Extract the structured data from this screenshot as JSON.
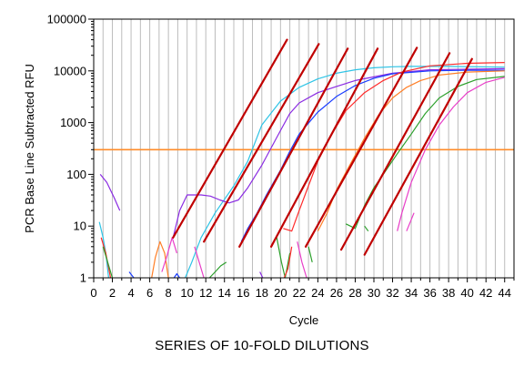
{
  "chart_data": {
    "type": "line",
    "ylabel": "PCR Base Line Subtracted RFU",
    "xlabel": "Cycle",
    "caption": "SERIES OF 10-FOLD DILUTIONS",
    "y_scale": "log",
    "xlim": [
      0,
      45
    ],
    "ylim": [
      1,
      100000
    ],
    "x_ticks": [
      "0",
      "2",
      "4",
      "6",
      "8",
      "10",
      "12",
      "14",
      "16",
      "18",
      "20",
      "22",
      "24",
      "26",
      "28",
      "30",
      "32",
      "34",
      "36",
      "38",
      "40",
      "42",
      "44"
    ],
    "y_ticks": [
      "1",
      "10",
      "100",
      "1000",
      "10000",
      "100000"
    ],
    "grid": "vertical",
    "threshold": {
      "value": 300,
      "color": "#ff8c2a"
    },
    "colors": {
      "regression": "#c00000"
    },
    "regression_lines": [
      {
        "x": [
          8.5,
          20.7
        ],
        "y": [
          6,
          40000
        ]
      },
      {
        "x": [
          11.8,
          24.1
        ],
        "y": [
          5,
          33000
        ]
      },
      {
        "x": [
          15.6,
          27.2
        ],
        "y": [
          4,
          27000
        ]
      },
      {
        "x": [
          19.0,
          30.4
        ],
        "y": [
          4,
          27000
        ]
      },
      {
        "x": [
          22.7,
          34.6
        ],
        "y": [
          4,
          28000
        ]
      },
      {
        "x": [
          26.5,
          38.1
        ],
        "y": [
          3.5,
          22000
        ]
      },
      {
        "x": [
          29.0,
          40.5
        ],
        "y": [
          2.8,
          17000
        ]
      }
    ],
    "series": [
      {
        "color": "#2ec4e6",
        "x": [
          9.8,
          10.5,
          11.5,
          13,
          15,
          16.5,
          18,
          20,
          22,
          24,
          26,
          28,
          30,
          32,
          34,
          38,
          44
        ],
        "y": [
          1,
          2,
          6,
          18,
          60,
          180,
          900,
          2600,
          4800,
          7000,
          9000,
          10500,
          11500,
          12000,
          12200,
          12200,
          11800
        ]
      },
      {
        "color": "#8a2be2",
        "x": [
          8.5,
          9.2,
          10,
          11.5,
          12.5,
          13.5,
          14.5,
          15.5,
          16.5,
          18,
          20,
          21,
          22,
          24,
          26,
          28,
          32,
          36,
          44
        ],
        "y": [
          6,
          20,
          40,
          40,
          38,
          32,
          28,
          32,
          55,
          150,
          700,
          1500,
          2400,
          3800,
          5000,
          6500,
          9000,
          10500,
          11000
        ]
      },
      {
        "color": "#1a3dff",
        "x": [
          15.8,
          16.5,
          17.5,
          18.5,
          20,
          21,
          22,
          24,
          26,
          28,
          30,
          32,
          36,
          40,
          44
        ],
        "y": [
          5,
          9,
          18,
          40,
          120,
          280,
          600,
          1600,
          3200,
          5200,
          7200,
          8800,
          10000,
          10300,
          10300
        ]
      },
      {
        "color": "#ff2a2a",
        "x": [
          20.3,
          21.2,
          22,
          23,
          24,
          25.5,
          27,
          29,
          31,
          33,
          36,
          40,
          44
        ],
        "y": [
          9,
          8,
          20,
          60,
          180,
          600,
          1700,
          3800,
          6500,
          9500,
          12500,
          14000,
          14500
        ]
      },
      {
        "color": "#ff7f27",
        "x": [
          24,
          25,
          26,
          27.5,
          29,
          30.5,
          32,
          33.5,
          35,
          37,
          40,
          44
        ],
        "y": [
          8,
          18,
          50,
          160,
          500,
          1400,
          3000,
          4800,
          6500,
          8300,
          9500,
          10000
        ]
      },
      {
        "color": "#2ca02c",
        "x": [
          27,
          28,
          29,
          30,
          31,
          32.5,
          34,
          35.5,
          37,
          39,
          41,
          44
        ],
        "y": [
          11,
          9,
          25,
          55,
          100,
          250,
          600,
          1500,
          3000,
          5000,
          6800,
          7800
        ]
      },
      {
        "color": "#e83ec8",
        "x": [
          32.5,
          33,
          34,
          35.5,
          37,
          38.5,
          40,
          42,
          44
        ],
        "y": [
          8,
          18,
          70,
          300,
          900,
          2000,
          3800,
          6000,
          7500
        ]
      },
      {
        "color": "#8a2be2",
        "x": [
          0.7,
          1.4,
          2.2,
          2.8
        ],
        "y": [
          100,
          70,
          35,
          20
        ]
      },
      {
        "color": "#2ec4e6",
        "x": [
          0.6,
          1.0,
          1.3,
          1.6
        ],
        "y": [
          12,
          6,
          3,
          1
        ]
      },
      {
        "color": "#ff2a2a",
        "x": [
          0.8,
          1.3,
          1.8
        ],
        "y": [
          6,
          3,
          1
        ]
      },
      {
        "color": "#2ca02c",
        "x": [
          1.0,
          1.5,
          2.0
        ],
        "y": [
          4,
          2,
          1
        ]
      },
      {
        "color": "#1a3dff",
        "x": [
          3.8,
          4.3
        ],
        "y": [
          1.3,
          1
        ]
      },
      {
        "color": "#ff7f27",
        "x": [
          6.2,
          6.6,
          7.1,
          7.6,
          8.0
        ],
        "y": [
          1,
          2.5,
          5,
          3,
          1
        ]
      },
      {
        "color": "#e83ec8",
        "x": [
          7.3,
          7.8,
          8.4,
          8.9
        ],
        "y": [
          1.3,
          2.5,
          6,
          3
        ]
      },
      {
        "color": "#1a3dff",
        "x": [
          8.6,
          8.9,
          9.2
        ],
        "y": [
          1,
          1.2,
          1
        ]
      },
      {
        "color": "#e83ec8",
        "x": [
          10.8,
          11.3,
          11.8
        ],
        "y": [
          4,
          2,
          1
        ]
      },
      {
        "color": "#2ca02c",
        "x": [
          12.4,
          13,
          13.6,
          14.2
        ],
        "y": [
          1,
          1.3,
          1.7,
          2
        ]
      },
      {
        "color": "#8a2be2",
        "x": [
          17.8,
          18.1
        ],
        "y": [
          1.3,
          1
        ]
      },
      {
        "color": "#2ca02c",
        "x": [
          19.6,
          20.1,
          20.5,
          21.0
        ],
        "y": [
          6,
          2,
          1,
          3
        ]
      },
      {
        "color": "#ff2a2a",
        "x": [
          20.4,
          20.8,
          21.2
        ],
        "y": [
          1,
          1.5,
          4
        ]
      },
      {
        "color": "#e83ec8",
        "x": [
          21.8,
          22.3,
          22.8
        ],
        "y": [
          5,
          2,
          1
        ]
      },
      {
        "color": "#2ca02c",
        "x": [
          23.0,
          23.4
        ],
        "y": [
          4,
          2
        ]
      },
      {
        "color": "#2ca02c",
        "x": [
          29.0,
          29.4
        ],
        "y": [
          10,
          8
        ]
      },
      {
        "color": "#e83ec8",
        "x": [
          33.5,
          33.9,
          34.3
        ],
        "y": [
          8,
          12,
          18
        ]
      }
    ]
  }
}
